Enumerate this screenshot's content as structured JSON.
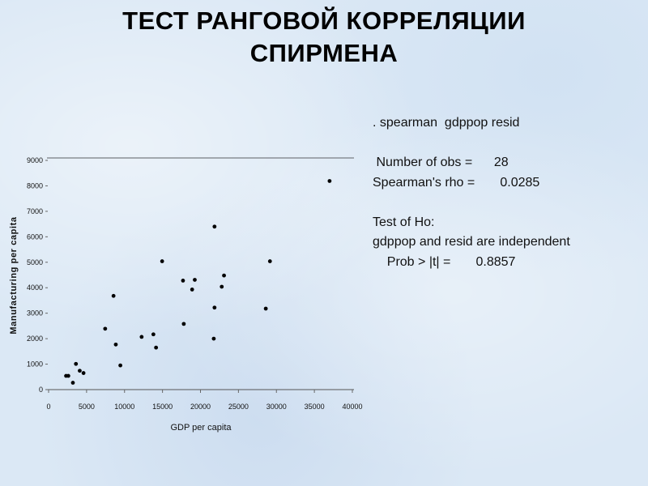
{
  "slide": {
    "title_line1": "ТЕСТ РАНГОВОЙ КОРРЕЛЯЦИИ",
    "title_line2": "СПИРМЕНА"
  },
  "stata_output": {
    "command": ". spearman  gdppop resid",
    "obs_line": " Number of obs =      28",
    "rho_line": "Spearman's rho =       0.0285",
    "test_line": "Test of Ho:",
    "hypothesis_line": "gdppop and resid are independent",
    "prob_line": "    Prob > |t| =       0.8857"
  },
  "chart_data": {
    "type": "scatter",
    "title": "",
    "xlabel": "GDP per capita",
    "ylabel": "Manufacturing per capita",
    "xlim": [
      0,
      40000
    ],
    "ylim": [
      0,
      9000
    ],
    "xticks": [
      "0",
      "5000",
      "10000",
      "15000",
      "20000",
      "25000",
      "30000",
      "35000",
      "40000"
    ],
    "yticks": [
      "0",
      "1000",
      "2000",
      "3000",
      "4000",
      "5000",
      "6000",
      "7000",
      "8000",
      "9000"
    ],
    "grid": false,
    "points": [
      [
        2300,
        540
      ],
      [
        2600,
        540
      ],
      [
        3200,
        270
      ],
      [
        3600,
        1010
      ],
      [
        4100,
        740
      ],
      [
        4600,
        650
      ],
      [
        7450,
        2390
      ],
      [
        8550,
        3680
      ],
      [
        8850,
        1770
      ],
      [
        9450,
        950
      ],
      [
        12250,
        2070
      ],
      [
        13800,
        2170
      ],
      [
        14150,
        1650
      ],
      [
        14950,
        5040
      ],
      [
        17700,
        4280
      ],
      [
        17800,
        2580
      ],
      [
        18900,
        3930
      ],
      [
        19250,
        4310
      ],
      [
        21850,
        6400
      ],
      [
        21850,
        3220
      ],
      [
        21750,
        2000
      ],
      [
        22800,
        4040
      ],
      [
        23100,
        4480
      ],
      [
        28600,
        3180
      ],
      [
        29150,
        5040
      ],
      [
        37000,
        8190
      ]
    ],
    "color": "#000000"
  }
}
